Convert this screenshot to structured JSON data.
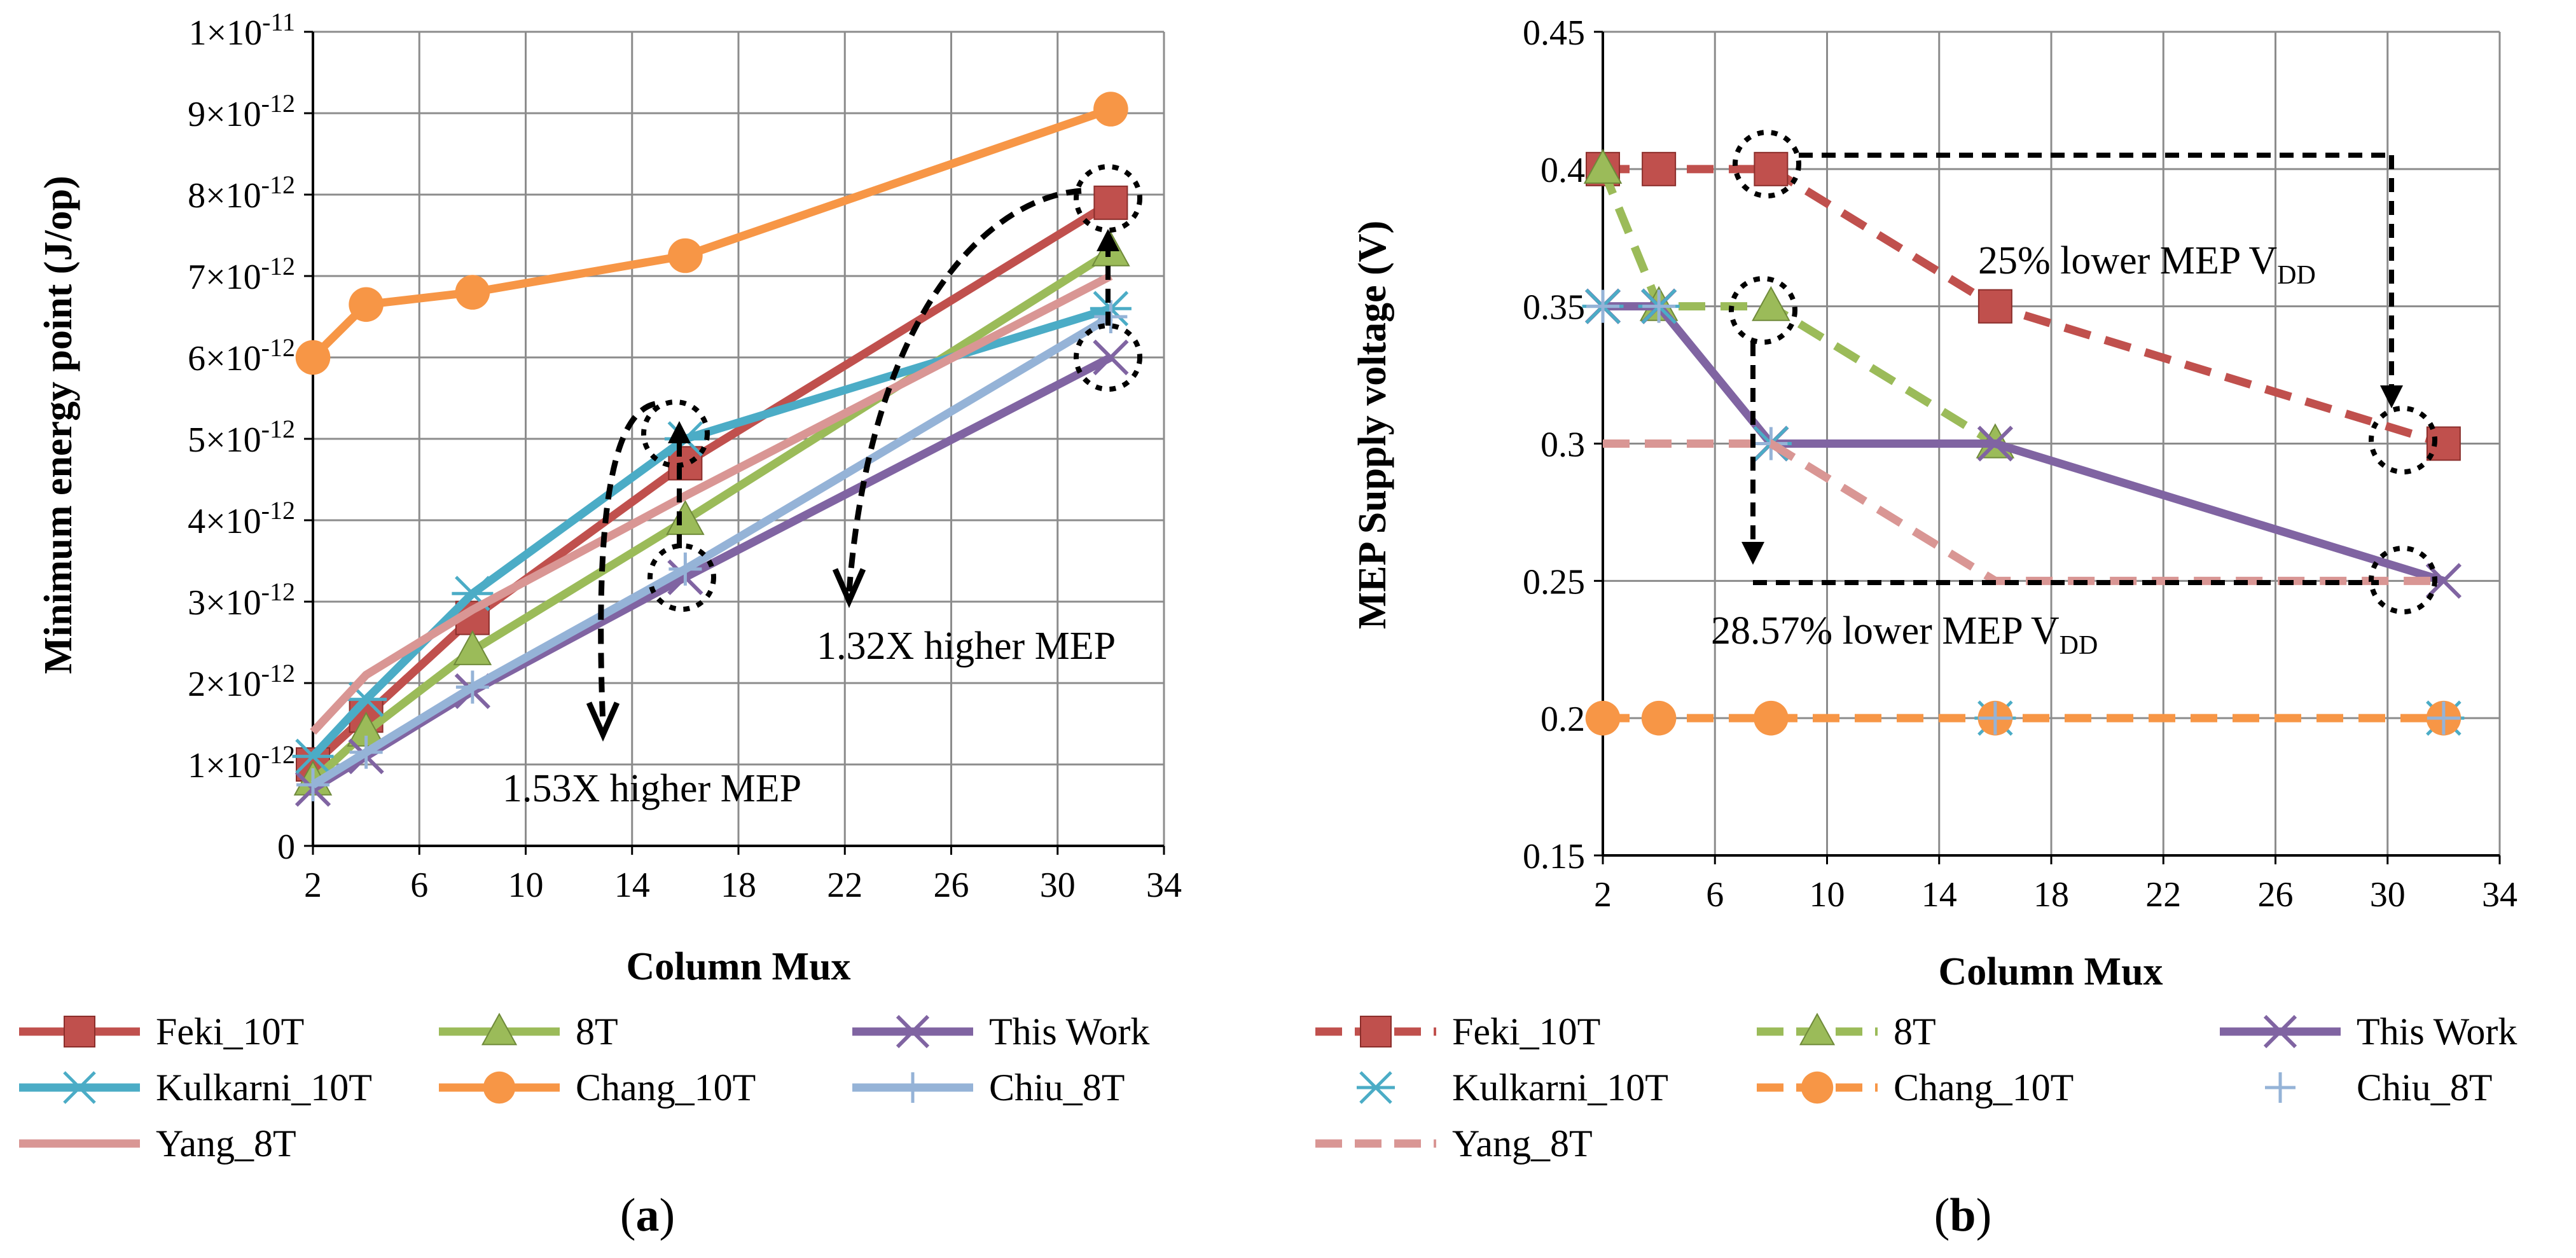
{
  "chart_data": [
    {
      "type": "line",
      "panel_label": "a",
      "xlabel": "Column Mux",
      "ylabel": "Minimum energy point (J/op)",
      "xlim": [
        2,
        34
      ],
      "ylim": [
        0,
        1e-11
      ],
      "x_ticks": [
        "2",
        "6",
        "10",
        "14",
        "18",
        "22",
        "26",
        "30",
        "34"
      ],
      "y_ticks": [
        {
          "v": 0,
          "label": "0"
        },
        {
          "v": 1e-12,
          "label": "1×10",
          "exp": "-12"
        },
        {
          "v": 2e-12,
          "label": "2×10",
          "exp": "-12"
        },
        {
          "v": 3e-12,
          "label": "3×10",
          "exp": "-12"
        },
        {
          "v": 4e-12,
          "label": "4×10",
          "exp": "-12"
        },
        {
          "v": 5e-12,
          "label": "5×10",
          "exp": "-12"
        },
        {
          "v": 6e-12,
          "label": "6×10",
          "exp": "-12"
        },
        {
          "v": 7e-12,
          "label": "7×10",
          "exp": "-12"
        },
        {
          "v": 8e-12,
          "label": "8×10",
          "exp": "-12"
        },
        {
          "v": 9e-12,
          "label": "9×10",
          "exp": "-12"
        },
        {
          "v": 1e-11,
          "label": "1×10",
          "exp": "-11"
        }
      ],
      "grid": true,
      "x": [
        2,
        4,
        8,
        16,
        32
      ],
      "series": [
        {
          "name": "Feki_10T",
          "values": [
            1e-12,
            1.6e-12,
            2.8e-12,
            4.7e-12,
            7.9e-12
          ],
          "color": "#c0504d",
          "marker": "square",
          "dash": false
        },
        {
          "name": "8T",
          "values": [
            8e-13,
            1.4e-12,
            2.4e-12,
            4e-12,
            7.3e-12
          ],
          "color": "#9bbb59",
          "marker": "triangle",
          "dash": false
        },
        {
          "name": "This Work",
          "values": [
            7e-13,
            1.1e-12,
            1.9e-12,
            3.3e-12,
            6e-12
          ],
          "color": "#8064a2",
          "marker": "x",
          "dash": false
        },
        {
          "name": "Kulkarni_10T",
          "values": [
            1.1e-12,
            1.8e-12,
            3.1e-12,
            5e-12,
            6.6e-12
          ],
          "color": "#4bacc6",
          "marker": "asterisk",
          "dash": false
        },
        {
          "name": "Chang_10T",
          "values": [
            6e-12,
            6.65e-12,
            6.8e-12,
            7.25e-12,
            9.05e-12
          ],
          "color": "#f79646",
          "marker": "circle",
          "dash": false
        },
        {
          "name": "Chiu_8T",
          "values": [
            7.5e-13,
            1.15e-12,
            1.95e-12,
            3.4e-12,
            6.5e-12
          ],
          "color": "#95b3d7",
          "marker": "plus",
          "dash": false
        },
        {
          "name": "Yang_8T",
          "values": [
            1.4e-12,
            2.1e-12,
            2.9e-12,
            4.3e-12,
            7e-12
          ],
          "color": "#d99694",
          "marker": "none",
          "dash": false
        }
      ],
      "annotations": [
        {
          "text": "1.32X higher MEP"
        },
        {
          "text": "1.53X higher MEP"
        }
      ]
    },
    {
      "type": "line",
      "panel_label": "b",
      "xlabel": "Column Mux",
      "ylabel": "MEP Supply voltage (V)",
      "xlim": [
        2,
        34
      ],
      "ylim": [
        0.15,
        0.45
      ],
      "x_ticks": [
        "2",
        "6",
        "10",
        "14",
        "18",
        "22",
        "26",
        "30",
        "34"
      ],
      "y_ticks": [
        {
          "v": 0.15,
          "label": "0.15"
        },
        {
          "v": 0.2,
          "label": "0.2"
        },
        {
          "v": 0.25,
          "label": "0.25"
        },
        {
          "v": 0.3,
          "label": "0.3"
        },
        {
          "v": 0.35,
          "label": "0.35"
        },
        {
          "v": 0.4,
          "label": "0.4"
        },
        {
          "v": 0.45,
          "label": "0.45"
        }
      ],
      "grid": true,
      "x": [
        2,
        4,
        8,
        16,
        32
      ],
      "series": [
        {
          "name": "Feki_10T",
          "values": [
            0.4,
            0.4,
            0.4,
            0.35,
            0.3
          ],
          "color": "#c0504d",
          "marker": "square",
          "dash": true
        },
        {
          "name": "8T",
          "values": [
            0.4,
            0.35,
            0.35,
            0.3,
            null
          ],
          "color": "#9bbb59",
          "marker": "triangle",
          "dash": true
        },
        {
          "name": "This Work",
          "values": [
            0.35,
            0.35,
            0.3,
            0.3,
            0.25
          ],
          "color": "#8064a2",
          "marker": "x",
          "dash": false
        },
        {
          "name": "Kulkarni_10T",
          "values": [
            0.35,
            0.35,
            0.3,
            0.2,
            0.2
          ],
          "color": "#4bacc6",
          "marker": "asterisk",
          "dash": false,
          "markers_only": true
        },
        {
          "name": "Chang_10T",
          "values": [
            0.2,
            0.2,
            0.2,
            0.2,
            0.2
          ],
          "color": "#f79646",
          "marker": "circle",
          "dash": true
        },
        {
          "name": "Chiu_8T",
          "values": [
            0.35,
            0.35,
            0.3,
            0.2,
            0.2
          ],
          "color": "#95b3d7",
          "marker": "plus",
          "dash": false,
          "markers_only": true
        },
        {
          "name": "Yang_8T",
          "values": [
            0.3,
            0.3,
            0.3,
            0.25,
            0.25
          ],
          "color": "#d99694",
          "marker": "none",
          "dash": true
        }
      ],
      "annotations": [
        {
          "text": "25% lower MEP V",
          "sub": "DD"
        },
        {
          "text": "28.57% lower MEP V",
          "sub": "DD"
        }
      ]
    }
  ]
}
